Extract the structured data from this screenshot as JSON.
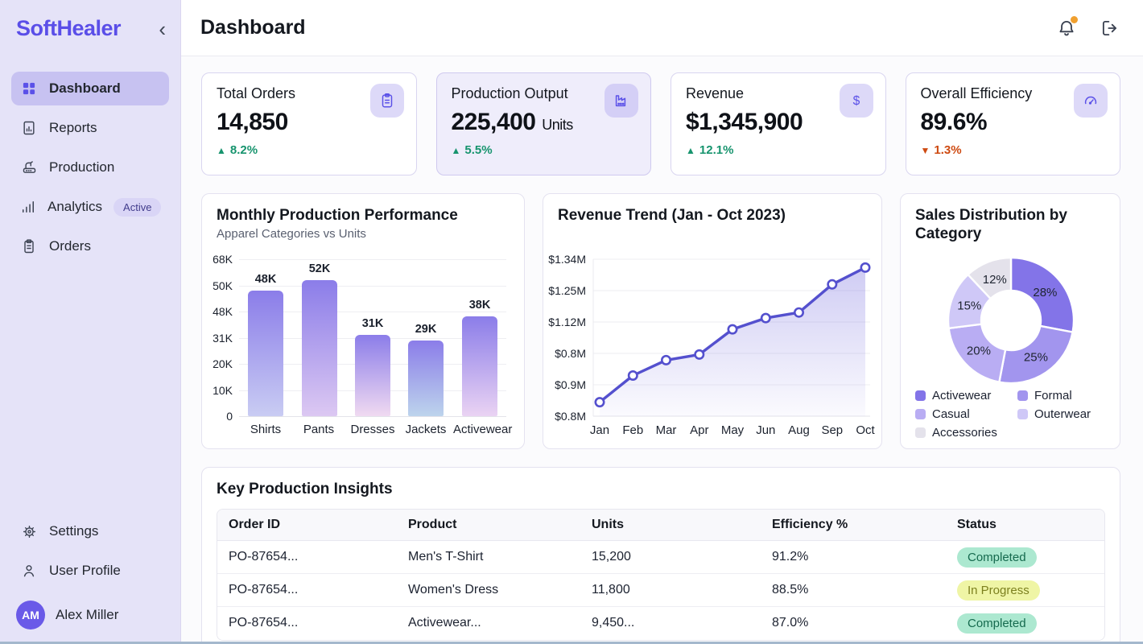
{
  "colors": {
    "accent": "#5B51E8",
    "sidebar_bg": "#E5E3F8",
    "active_pill": "#C7C2F1",
    "up_green": "#17946E",
    "down_red": "#CE4A11",
    "completed_badge_bg": "#ACE8D0",
    "in_progress_badge_bg": "#EFF5A5",
    "notification_dot": "#F0A030"
  },
  "sidebar": {
    "logo": "SoftHealer",
    "collapse_icon": "‹",
    "nav": [
      {
        "label": "Dashboard"
      },
      {
        "label": "Reports"
      },
      {
        "label": "Production"
      },
      {
        "label": "Analytics",
        "badge": "Active"
      },
      {
        "label": "Orders"
      }
    ],
    "footer_nav": [
      {
        "label": "Settings"
      },
      {
        "label": "User Profile"
      }
    ],
    "user": {
      "initials": "AM",
      "name": "Alex Miller"
    }
  },
  "header": {
    "title": "Dashboard"
  },
  "kpis": [
    {
      "title": "Total Orders",
      "value": "14,850",
      "unit": "",
      "delta": "8.2%",
      "delta_icon": "▲",
      "direction": "up",
      "icon": "clipboard-icon"
    },
    {
      "title": "Production Output",
      "value": "225,400",
      "unit": "Units",
      "delta": "5.5%",
      "delta_icon": "▲",
      "direction": "up",
      "icon": "factory-icon"
    },
    {
      "title": "Revenue",
      "value": "$1,345,900",
      "unit": "",
      "delta": "12.1%",
      "delta_icon": "▲",
      "direction": "up",
      "icon": "dollar-icon"
    },
    {
      "title": "Overall Efficiency",
      "value": "89.6%",
      "unit": "",
      "delta": "1.3%",
      "delta_icon": "▼",
      "direction": "down",
      "icon": "gauge-icon"
    }
  ],
  "chart_data": [
    {
      "type": "bar",
      "title": "Monthly Production Performance",
      "subtitle": "Apparel Categories vs Units",
      "categories": [
        "Shirts",
        "Pants",
        "Dresses",
        "Jackets",
        "Activewear"
      ],
      "values": [
        48000,
        52000,
        31000,
        29000,
        38000
      ],
      "value_labels": [
        "48K",
        "52K",
        "31K",
        "29K",
        "38K"
      ],
      "y_ticks": [
        "68K",
        "50K",
        "48K",
        "31K",
        "20K",
        "10K",
        "0"
      ],
      "grid": true,
      "bar_gradient_top": "#8B7DE9",
      "bar_gradient_bottoms": [
        "#C9CCF3",
        "#DCC8F2",
        "#F0DAF1",
        "#BDD4EC",
        "#EAD3F3"
      ]
    },
    {
      "type": "line",
      "title": "Revenue Trend (Jan - Oct 2023)",
      "x": [
        "Jan",
        "Feb",
        "Mar",
        "Apr",
        "May",
        "Jun",
        "Aug",
        "Sep",
        "Oct"
      ],
      "values_musd": [
        0.85,
        0.945,
        1.0,
        1.02,
        1.11,
        1.15,
        1.17,
        1.27,
        1.33
      ],
      "y_ticks": [
        "$1.34M",
        "$1.25M",
        "$1.12M",
        "$0.8M",
        "$0.9M",
        "$0.8M"
      ],
      "ylim_musd": [
        0.8,
        1.36
      ],
      "grid": true,
      "line_color": "#5450CE",
      "marker_fill": "#FFFFFF"
    },
    {
      "type": "pie",
      "title": "Sales Distribution by Category",
      "labels": [
        "Activewear",
        "Formal",
        "Casual",
        "Outerwear",
        "Accessories"
      ],
      "values_pct": [
        28,
        25,
        20,
        15,
        12
      ],
      "slice_labels": [
        "28%",
        "25%",
        "20%",
        "15%",
        "12%"
      ],
      "colors": [
        "#8374E8",
        "#A295EE",
        "#B9ADF3",
        "#CFC8F7",
        "#E4E2EB"
      ],
      "legend_position": "bottom",
      "donut": true
    }
  ],
  "table": {
    "title": "Key Production Insights",
    "columns": [
      "Order ID",
      "Product",
      "Units",
      "Efficiency %",
      "Status"
    ],
    "rows": [
      {
        "order_id": "PO-87654...",
        "product": "Men's T-Shirt",
        "units": "15,200",
        "efficiency": "91.2%",
        "status": "Completed",
        "status_type": "completed"
      },
      {
        "order_id": "PO-87654...",
        "product": "Women's Dress",
        "units": "11,800",
        "efficiency": "88.5%",
        "status": "In Progress",
        "status_type": "in-progress"
      },
      {
        "order_id": "PO-87654...",
        "product": "Activewear...",
        "units": "9,450...",
        "efficiency": "87.0%",
        "status": "Completed",
        "status_type": "completed"
      }
    ]
  }
}
